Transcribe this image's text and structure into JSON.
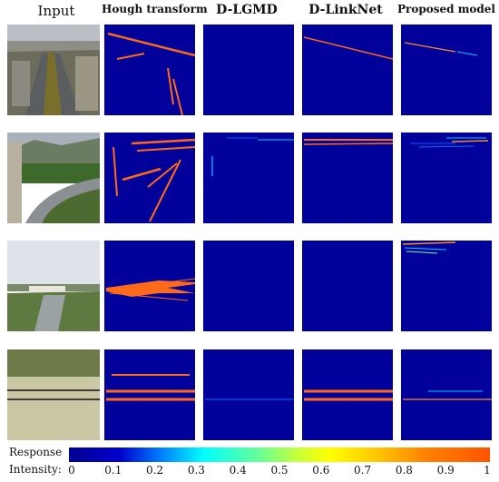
{
  "columns": [
    "Input",
    "Hough transform",
    "D-LGMD",
    "D-LinkNet",
    "Proposed model"
  ],
  "colorbar": {
    "label_line1": "Response",
    "label_line2": "Intensity:",
    "ticks": [
      "0",
      "0.1",
      "0.2",
      "0.3",
      "0.4",
      "0.5",
      "0.6",
      "0.7",
      "0.8",
      "0.9",
      "1"
    ],
    "range": [
      0,
      1
    ],
    "colors": [
      "#00008f",
      "#0000cc",
      "#0080ff",
      "#00ffff",
      "#66ff99",
      "#ccff33",
      "#ffff00",
      "#ffcc00",
      "#ff8000",
      "#ff5500"
    ]
  },
  "colors": {
    "background_response": "#00009a",
    "high_response": "#ff6a1a",
    "mid_response": "#00ccff"
  },
  "rows": [
    {
      "scene": "highway aerial view with city"
    },
    {
      "scene": "curving highway with trees and mountains"
    },
    {
      "scene": "river canal with buildings"
    },
    {
      "scene": "field with horizontal wires"
    }
  ]
}
